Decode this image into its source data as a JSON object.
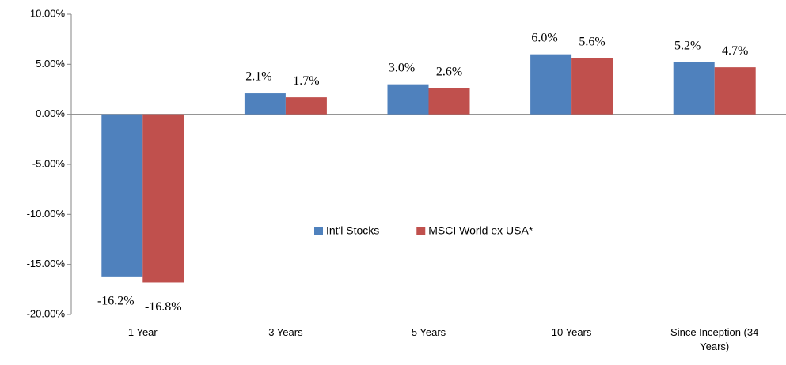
{
  "chart_data": {
    "type": "bar",
    "categories": [
      "1 Year",
      "3 Years",
      "5 Years",
      "10 Years",
      "Since Inception (34 Years)"
    ],
    "series": [
      {
        "name": "Int'l Stocks",
        "color": "#4f81bd",
        "values": [
          -16.2,
          2.1,
          3.0,
          6.0,
          5.2
        ],
        "value_labels": [
          "-16.2%",
          "2.1%",
          "3.0%",
          "6.0%",
          "5.2%"
        ]
      },
      {
        "name": "MSCI World ex USA*",
        "color": "#c0504d",
        "values": [
          -16.8,
          1.7,
          2.6,
          5.6,
          4.7
        ],
        "value_labels": [
          "-16.8%",
          "1.7%",
          "2.6%",
          "5.6%",
          "4.7%"
        ]
      }
    ],
    "ylim": [
      -20,
      10
    ],
    "yticks": [
      {
        "value": -20,
        "label": "-20.00%"
      },
      {
        "value": -15,
        "label": "-15.00%"
      },
      {
        "value": -10,
        "label": "-10.00%"
      },
      {
        "value": -5,
        "label": "-5.00%"
      },
      {
        "value": 0,
        "label": "0.00%"
      },
      {
        "value": 5,
        "label": "5.00%"
      },
      {
        "value": 10,
        "label": "10.00%"
      }
    ],
    "grid": false,
    "legend": "center"
  }
}
